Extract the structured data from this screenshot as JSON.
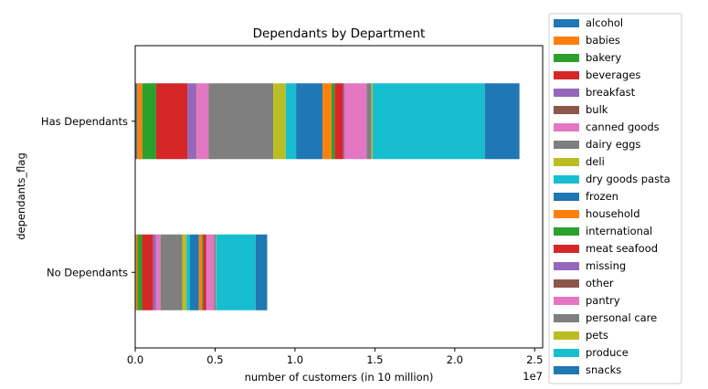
{
  "chart_data": {
    "type": "bar",
    "orientation": "horizontal",
    "stacked": true,
    "title": "Dependants by Department",
    "xlabel": "number of customers (in 10 million)",
    "ylabel": "dependants_flag",
    "x_offset_text": "1e7",
    "xlim": [
      0,
      25500000
    ],
    "x_ticks": [
      0,
      5000000,
      10000000,
      15000000,
      20000000,
      25000000
    ],
    "x_tick_labels": [
      "0.0",
      "0.5",
      "1.0",
      "1.5",
      "2.0",
      "2.5"
    ],
    "grid": false,
    "legend_position": "outside-right",
    "categories": [
      "No Dependants",
      "Has Dependants"
    ],
    "series": [
      {
        "name": "alcohol",
        "color": "#1f77b4",
        "values": [
          40000,
          110000
        ]
      },
      {
        "name": "babies",
        "color": "#ff7f0e",
        "values": [
          100000,
          330000
        ]
      },
      {
        "name": "bakery",
        "color": "#2ca02c",
        "values": [
          290000,
          870000
        ]
      },
      {
        "name": "beverages",
        "color": "#d62728",
        "values": [
          700000,
          1970000
        ]
      },
      {
        "name": "breakfast",
        "color": "#9467bd",
        "values": [
          170000,
          530000
        ]
      },
      {
        "name": "bulk",
        "color": "#8c564b",
        "values": [
          10000,
          30000
        ]
      },
      {
        "name": "canned goods",
        "color": "#e377c2",
        "values": [
          270000,
          760000
        ]
      },
      {
        "name": "dairy eggs",
        "color": "#7f7f7f",
        "values": [
          1370000,
          4040000
        ]
      },
      {
        "name": "deli",
        "color": "#bcbd22",
        "values": [
          260000,
          780000
        ]
      },
      {
        "name": "dry goods pasta",
        "color": "#17becf",
        "values": [
          220000,
          650000
        ]
      },
      {
        "name": "frozen",
        "color": "#1f77b4",
        "values": [
          560000,
          1660000
        ]
      },
      {
        "name": "household",
        "color": "#ff7f0e",
        "values": [
          190000,
          550000
        ]
      },
      {
        "name": "international",
        "color": "#2ca02c",
        "values": [
          70000,
          200000
        ]
      },
      {
        "name": "meat seafood",
        "color": "#d62728",
        "values": [
          180000,
          530000
        ]
      },
      {
        "name": "missing",
        "color": "#9467bd",
        "values": [
          20000,
          50000
        ]
      },
      {
        "name": "other",
        "color": "#8c564b",
        "values": [
          10000,
          30000
        ]
      },
      {
        "name": "pantry",
        "color": "#e377c2",
        "values": [
          480000,
          1390000
        ]
      },
      {
        "name": "personal care",
        "color": "#7f7f7f",
        "values": [
          110000,
          310000
        ]
      },
      {
        "name": "pets",
        "color": "#bcbd22",
        "values": [
          20000,
          70000
        ]
      },
      {
        "name": "produce",
        "color": "#17becf",
        "values": [
          2470000,
          7020000
        ]
      },
      {
        "name": "snacks",
        "color": "#1f77b4",
        "values": [
          720000,
          2170000
        ]
      }
    ]
  }
}
